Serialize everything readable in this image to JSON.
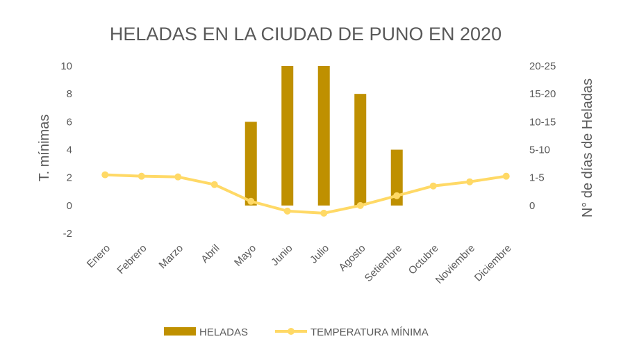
{
  "chart_data": {
    "type": "bar+line",
    "title": "HELADAS EN LA CIUDAD DE PUNO EN 2020",
    "categories": [
      "Enero",
      "Febrero",
      "Marzo",
      "Abril",
      "Mayo",
      "Junio",
      "Julio",
      "Agosto",
      "Setiembre",
      "Octubre",
      "Noviembre",
      "Diciembre"
    ],
    "series": [
      {
        "name": "HELADAS",
        "type": "bar",
        "axis": "left",
        "color": "#BF9000",
        "values": [
          0,
          0,
          0,
          0,
          6,
          10,
          10,
          8,
          4,
          0,
          0,
          0
        ]
      },
      {
        "name": "TEMPERATURA MÍNIMA",
        "type": "line",
        "axis": "left",
        "color": "#FFD966",
        "values": [
          2.2,
          2.1,
          2.05,
          1.5,
          0.3,
          -0.4,
          -0.55,
          0.0,
          0.7,
          1.4,
          1.7,
          2.1
        ]
      }
    ],
    "ylabel": "T.  mínimas",
    "ylim": [
      -2,
      10
    ],
    "yticks": [
      "-2",
      "0",
      "2",
      "4",
      "6",
      "8",
      "10"
    ],
    "y2label": "N° de días de Heladas",
    "y2ticks": [
      "0",
      "1-5",
      "5-10",
      "10-15",
      "15-20",
      "20-25"
    ],
    "grid": false,
    "legend_position": "bottom"
  }
}
